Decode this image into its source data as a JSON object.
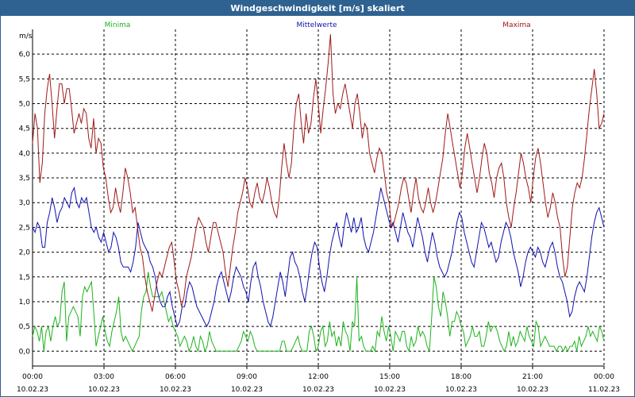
{
  "window": {
    "title": "Windgeschwindigkeit [m/s] skaliert"
  },
  "chart_data": {
    "type": "line",
    "unit_label": "m/s",
    "title": "Windgeschwindigkeit [m/s] skaliert",
    "xlabel": "",
    "ylabel": "m/s",
    "ylim": [
      -0.3,
      6.5
    ],
    "xlim": [
      0,
      24
    ],
    "grid": true,
    "legend_position": "top",
    "y_ticks": [
      "0,0",
      "0,5",
      "1,0",
      "1,5",
      "2,0",
      "2,5",
      "3,0",
      "3,5",
      "4,0",
      "4,5",
      "5,0",
      "5,5",
      "6,0"
    ],
    "x_ticks": [
      {
        "time": "00:00",
        "date": "10.02.23"
      },
      {
        "time": "03:00",
        "date": "10.02.23"
      },
      {
        "time": "06:00",
        "date": "10.02.23"
      },
      {
        "time": "09:00",
        "date": "10.02.23"
      },
      {
        "time": "12:00",
        "date": "10.02.23"
      },
      {
        "time": "15:00",
        "date": "10.02.23"
      },
      {
        "time": "18:00",
        "date": "10.02.23"
      },
      {
        "time": "21:00",
        "date": "10.02.23"
      },
      {
        "time": "00:00",
        "date": "11.02.23"
      }
    ],
    "x_step_hours": 0.1667,
    "series": [
      {
        "name": "Minima",
        "color": "#1cb31c",
        "values": [
          0.3,
          0.5,
          0.4,
          0.2,
          0.5,
          0.0,
          0.4,
          0.5,
          0.2,
          0.5,
          0.7,
          0.5,
          0.6,
          1.2,
          1.4,
          0.2,
          0.7,
          0.8,
          0.9,
          0.8,
          0.7,
          0.3,
          1.1,
          1.3,
          1.2,
          1.3,
          1.4,
          0.8,
          0.1,
          0.3,
          0.5,
          0.7,
          0.4,
          0.2,
          0.1,
          0.4,
          0.6,
          0.8,
          1.1,
          0.4,
          0.2,
          0.3,
          0.2,
          0.1,
          0.0,
          0.1,
          0.2,
          0.3,
          0.8,
          1.1,
          1.2,
          1.6,
          1.3,
          1.1,
          1.1,
          1.1,
          1.1,
          1.2,
          1.0,
          0.8,
          0.6,
          0.7,
          0.5,
          0.4,
          0.3,
          0.1,
          0.2,
          0.3,
          0.2,
          0.0,
          0.1,
          0.3,
          0.1,
          0.0,
          0.3,
          0.2,
          0.0,
          0.1,
          0.4,
          0.2,
          0.1,
          0.0,
          0.0,
          0.0,
          0.0,
          0.0,
          0.0,
          0.0,
          0.0,
          0.0,
          0.0,
          0.1,
          0.2,
          0.4,
          0.3,
          0.2,
          0.4,
          0.3,
          0.1,
          0.0,
          0.0,
          0.0,
          0.0,
          0.0,
          0.0,
          0.0,
          0.0,
          0.0,
          0.0,
          0.0,
          0.2,
          0.2,
          0.0,
          0.0,
          0.0,
          0.1,
          0.2,
          0.3,
          0.1,
          0.0,
          0.0,
          0.0,
          0.4,
          0.5,
          0.3,
          0.0,
          0.1,
          0.4,
          0.5,
          0.1,
          0.2,
          0.6,
          0.3,
          0.4,
          0.1,
          0.3,
          0.1,
          0.6,
          0.4,
          0.3,
          0.0,
          0.6,
          0.5,
          1.5,
          0.2,
          0.3,
          0.1,
          0.0,
          0.0,
          0.0,
          0.1,
          0.0,
          0.4,
          0.3,
          0.7,
          0.4,
          0.2,
          0.5,
          0.3,
          0.0,
          0.4,
          0.3,
          0.2,
          0.4,
          0.4,
          0.1,
          0.0,
          0.3,
          0.1,
          0.2,
          0.5,
          0.3,
          0.4,
          0.3,
          0.1,
          0.0,
          0.7,
          1.5,
          1.3,
          0.9,
          0.7,
          1.2,
          1.0,
          0.7,
          0.3,
          0.6,
          0.6,
          0.8,
          0.7,
          0.5,
          0.4,
          0.1,
          0.2,
          0.3,
          0.5,
          0.3,
          0.3,
          0.4,
          0.1,
          0.1,
          0.3,
          0.6,
          0.4,
          0.5,
          0.5,
          0.4,
          0.2,
          0.1,
          0.0,
          0.1,
          0.4,
          0.1,
          0.3,
          0.1,
          0.2,
          0.4,
          0.3,
          0.2,
          0.5,
          0.3,
          0.2,
          0.1,
          0.6,
          0.5,
          0.1,
          0.2,
          0.3,
          0.2,
          0.1,
          0.1,
          0.1,
          0.0,
          0.1,
          0.1,
          0.0,
          0.1,
          0.0,
          0.1,
          0.1,
          0.2,
          0.0,
          0.3,
          0.1,
          0.2,
          0.3,
          0.5,
          0.3,
          0.4,
          0.3,
          0.2,
          0.5,
          0.4,
          0.2
        ]
      },
      {
        "name": "Mittelwerte",
        "color": "#1010b0",
        "values": [
          2.5,
          2.4,
          2.6,
          2.5,
          2.1,
          2.1,
          2.6,
          2.8,
          3.1,
          2.9,
          2.6,
          2.8,
          2.9,
          3.1,
          3.0,
          2.9,
          3.2,
          3.3,
          3.0,
          2.9,
          3.1,
          3.0,
          3.1,
          2.8,
          2.5,
          2.4,
          2.5,
          2.3,
          2.2,
          2.4,
          2.2,
          2.0,
          2.1,
          2.4,
          2.3,
          2.1,
          1.8,
          1.7,
          1.7,
          1.7,
          1.6,
          1.8,
          2.1,
          2.6,
          2.4,
          2.2,
          2.1,
          2.0,
          1.8,
          1.7,
          1.5,
          1.2,
          1.0,
          0.9,
          0.9,
          1.1,
          1.2,
          0.9,
          0.7,
          0.5,
          0.6,
          0.9,
          0.9,
          1.2,
          1.4,
          1.3,
          1.1,
          0.9,
          0.8,
          0.7,
          0.6,
          0.5,
          0.6,
          0.8,
          1.0,
          1.3,
          1.5,
          1.6,
          1.4,
          1.2,
          1.0,
          1.2,
          1.5,
          1.7,
          1.6,
          1.5,
          1.3,
          1.2,
          1.0,
          1.4,
          1.7,
          1.8,
          1.5,
          1.3,
          1.0,
          0.8,
          0.6,
          0.5,
          0.7,
          1.0,
          1.3,
          1.6,
          1.4,
          1.1,
          1.5,
          1.9,
          2.0,
          1.8,
          1.7,
          1.5,
          1.2,
          1.0,
          1.3,
          1.7,
          2.0,
          2.2,
          2.1,
          1.7,
          1.4,
          1.2,
          1.5,
          1.9,
          2.2,
          2.4,
          2.6,
          2.3,
          2.1,
          2.5,
          2.8,
          2.6,
          2.4,
          2.7,
          2.4,
          2.5,
          2.7,
          2.3,
          2.1,
          2.0,
          2.2,
          2.4,
          2.7,
          3.0,
          3.3,
          3.1,
          2.9,
          2.7,
          2.5,
          2.6,
          2.4,
          2.2,
          2.5,
          2.8,
          2.6,
          2.4,
          2.3,
          2.1,
          2.4,
          2.7,
          2.5,
          2.3,
          2.0,
          1.8,
          2.1,
          2.4,
          2.2,
          1.9,
          1.7,
          1.6,
          1.5,
          1.6,
          1.8,
          2.0,
          2.3,
          2.6,
          2.8,
          2.7,
          2.4,
          2.2,
          2.0,
          1.8,
          1.7,
          2.0,
          2.3,
          2.6,
          2.5,
          2.3,
          2.1,
          2.2,
          2.0,
          1.8,
          1.9,
          2.2,
          2.4,
          2.6,
          2.5,
          2.3,
          2.0,
          1.8,
          1.6,
          1.3,
          1.5,
          1.8,
          2.0,
          2.1,
          2.0,
          1.9,
          2.1,
          2.0,
          1.8,
          1.7,
          1.9,
          2.1,
          2.2,
          2.0,
          1.7,
          1.5,
          1.4,
          1.2,
          1.0,
          0.7,
          0.8,
          1.1,
          1.3,
          1.4,
          1.3,
          1.2,
          1.5,
          1.9,
          2.3,
          2.6,
          2.8,
          2.9,
          2.7,
          2.5
        ]
      },
      {
        "name": "Maxima",
        "color": "#a01818",
        "values": [
          4.2,
          4.8,
          4.5,
          3.4,
          3.8,
          4.8,
          5.3,
          5.6,
          5.0,
          4.3,
          4.9,
          5.4,
          5.4,
          5.0,
          5.3,
          5.3,
          4.9,
          4.4,
          4.6,
          4.8,
          4.6,
          4.9,
          4.8,
          4.3,
          4.1,
          4.7,
          4.0,
          4.3,
          4.2,
          3.7,
          3.5,
          3.1,
          2.8,
          2.9,
          3.3,
          3.0,
          2.8,
          3.2,
          3.7,
          3.5,
          3.2,
          2.8,
          2.9,
          2.5,
          2.1,
          1.9,
          1.5,
          1.2,
          1.0,
          0.8,
          1.1,
          1.4,
          1.6,
          1.5,
          1.7,
          1.9,
          2.1,
          2.2,
          1.8,
          1.4,
          1.2,
          0.9,
          1.1,
          1.5,
          1.7,
          1.9,
          2.2,
          2.5,
          2.7,
          2.6,
          2.5,
          2.2,
          2.0,
          2.3,
          2.6,
          2.6,
          2.4,
          2.2,
          2.0,
          1.6,
          1.3,
          1.7,
          2.1,
          2.4,
          2.8,
          3.0,
          3.2,
          3.5,
          3.3,
          3.0,
          2.9,
          3.2,
          3.4,
          3.1,
          3.0,
          3.2,
          3.5,
          3.3,
          3.0,
          2.8,
          2.7,
          3.1,
          3.7,
          4.2,
          3.8,
          3.5,
          3.8,
          4.5,
          5.0,
          5.2,
          4.6,
          4.2,
          4.8,
          4.4,
          4.6,
          5.1,
          5.5,
          5.0,
          4.4,
          4.9,
          5.3,
          5.8,
          6.4,
          5.2,
          4.8,
          5.0,
          4.9,
          5.2,
          5.4,
          5.1,
          4.8,
          4.5,
          5.0,
          5.2,
          4.8,
          4.3,
          4.6,
          4.5,
          4.0,
          3.8,
          3.6,
          3.9,
          4.1,
          4.0,
          3.6,
          3.2,
          3.0,
          2.5,
          2.6,
          2.8,
          3.0,
          3.3,
          3.5,
          3.4,
          3.1,
          2.8,
          3.2,
          3.5,
          3.1,
          2.9,
          2.8,
          3.0,
          3.3,
          3.0,
          2.8,
          3.0,
          3.3,
          3.6,
          3.9,
          4.4,
          4.8,
          4.5,
          4.2,
          3.9,
          3.6,
          3.3,
          3.6,
          4.1,
          4.4,
          4.1,
          3.8,
          3.5,
          3.2,
          3.5,
          3.9,
          4.2,
          4.0,
          3.6,
          3.4,
          3.1,
          3.5,
          3.7,
          3.8,
          3.5,
          3.0,
          2.7,
          2.5,
          2.9,
          3.2,
          3.6,
          4.0,
          3.8,
          3.5,
          3.3,
          3.0,
          3.5,
          3.9,
          4.1,
          3.8,
          3.4,
          3.0,
          2.7,
          2.9,
          3.2,
          3.0,
          2.7,
          2.5,
          1.9,
          1.5,
          1.7,
          2.3,
          2.9,
          3.2,
          3.4,
          3.3,
          3.5,
          3.9,
          4.4,
          4.9,
          5.3,
          5.7,
          5.2,
          4.5,
          4.6,
          4.8
        ]
      }
    ]
  }
}
